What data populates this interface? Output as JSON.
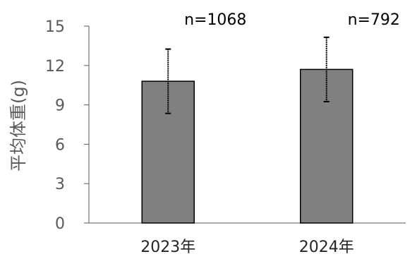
{
  "chart_data": {
    "type": "bar",
    "categories": [
      "2023年",
      "2024年"
    ],
    "values": [
      10.8,
      11.7
    ],
    "error": [
      2.45,
      2.45
    ],
    "annotations": [
      "n=1068",
      "n=792"
    ],
    "ylabel": "平均体重(g)",
    "xlabel": "",
    "title": "",
    "ylim": [
      0,
      15
    ],
    "yticks": [
      0,
      3,
      6,
      9,
      12,
      15
    ],
    "grid": false,
    "legend": "none",
    "colors": {
      "bar": "#808080",
      "bar_edge": "#000000",
      "axis": "#595959",
      "error": "#000000"
    }
  }
}
